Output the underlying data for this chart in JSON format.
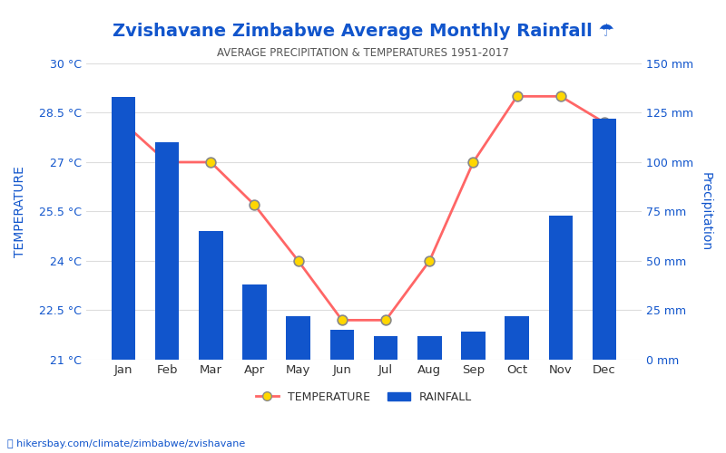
{
  "title": "Zvishavane Zimbabwe Average Monthly Rainfall ☂",
  "subtitle": "AVERAGE PRECIPITATION & TEMPERATURES 1951-2017",
  "months": [
    "Jan",
    "Feb",
    "Mar",
    "Apr",
    "May",
    "Jun",
    "Jul",
    "Aug",
    "Sep",
    "Oct",
    "Nov",
    "Dec"
  ],
  "rainfall_mm": [
    133,
    110,
    65,
    38,
    22,
    15,
    12,
    12,
    14,
    22,
    73,
    122
  ],
  "temperature_c": [
    28.2,
    27.0,
    27.0,
    25.7,
    24.0,
    22.2,
    22.2,
    24.0,
    27.0,
    29.0,
    29.0,
    28.2
  ],
  "temp_ylim": [
    21,
    30
  ],
  "temp_yticks": [
    21,
    22.5,
    24,
    25.5,
    27,
    28.5,
    30
  ],
  "temp_yticklabels": [
    "21 °C",
    "22.5 °C",
    "24 °C",
    "25.5 °C",
    "27 °C",
    "28.5 °C",
    "30 °C"
  ],
  "rain_ylim": [
    0,
    150
  ],
  "rain_yticks": [
    0,
    25,
    50,
    75,
    100,
    125,
    150
  ],
  "rain_yticklabels": [
    "0 mm",
    "25 mm",
    "50 mm",
    "75 mm",
    "100 mm",
    "125 mm",
    "150 mm"
  ],
  "bar_color": "#1155CC",
  "line_color": "#FF6666",
  "marker_facecolor": "#FFD700",
  "marker_edgecolor": "#888888",
  "title_color": "#1155CC",
  "subtitle_color": "#555555",
  "axis_label_color": "#1155CC",
  "tick_color": "#1155CC",
  "background_color": "#FFFFFF",
  "footer_text": "hikersbay.com/climate/zimbabwe/zvishavane",
  "footer_color": "#1155CC",
  "xlabel_left": "TEMPERATURE",
  "xlabel_right": "Precipitation"
}
